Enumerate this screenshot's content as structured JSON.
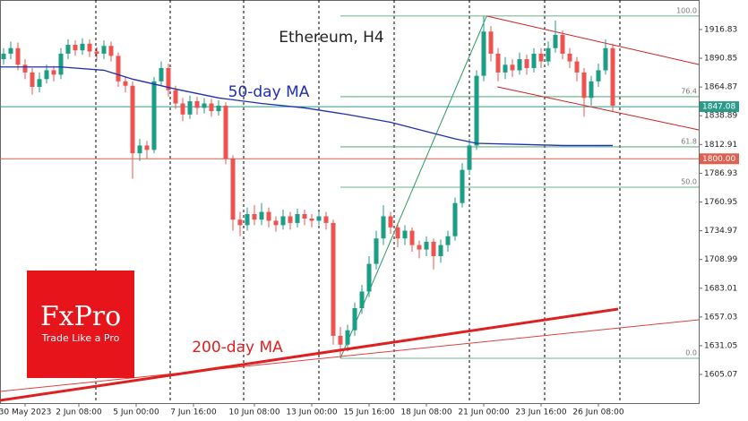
{
  "chart_data": {
    "type": "candlestick",
    "title": "Ethereum, H4",
    "xlim": [
      -0.5,
      97
    ],
    "ylim": [
      1579.2,
      1943.5
    ],
    "yticks": [
      1916.83,
      1890.85,
      1864.87,
      1838.89,
      1812.91,
      1786.93,
      1760.95,
      1734.97,
      1708.99,
      1683.01,
      1657.03,
      1631.05,
      1605.07
    ],
    "xticks": [
      {
        "value": 3,
        "label": "30 May 2023"
      },
      {
        "value": 10.5,
        "label": "2 Jun 08:00"
      },
      {
        "value": 18.5,
        "label": "5 Jun 00:00"
      },
      {
        "value": 26.5,
        "label": "7 Jun 16:00"
      },
      {
        "value": 35,
        "label": "10 Jun 08:00"
      },
      {
        "value": 43,
        "label": "13 Jun 00:00"
      },
      {
        "value": 51,
        "label": "15 Jun 16:00"
      },
      {
        "value": 59,
        "label": "18 Jun 08:00"
      },
      {
        "value": 67,
        "label": "21 Jun 00:00"
      },
      {
        "value": 75,
        "label": "23 Jun 16:00"
      },
      {
        "value": 83,
        "label": "26 Jun 08:00"
      }
    ],
    "xgrid": [
      12.875,
      23.25,
      33.5,
      44,
      54.5,
      65,
      75.5,
      86
    ],
    "up_color": "#1a9e85",
    "down_color": "#ef5350",
    "open": [
      1890,
      1895,
      1900,
      1885,
      1878,
      1865,
      1872,
      1880,
      1876,
      1895,
      1903,
      1898,
      1904,
      1897,
      1895,
      1902,
      1893,
      1870,
      1866,
      1805,
      1812,
      1808,
      1870,
      1882,
      1862,
      1850,
      1840,
      1852,
      1846,
      1850,
      1843,
      1848,
      1800,
      1745,
      1740,
      1750,
      1745,
      1752,
      1744,
      1740,
      1748,
      1742,
      1750,
      1746,
      1744,
      1748,
      1742,
      1640,
      1632,
      1645,
      1665,
      1680,
      1705,
      1728,
      1748,
      1738,
      1728,
      1735,
      1722,
      1718,
      1725,
      1712,
      1722,
      1730,
      1760,
      1790,
      1812,
      1875,
      1915,
      1895,
      1878,
      1885,
      1880,
      1890,
      1882,
      1895,
      1888,
      1900,
      1912,
      1895,
      1888,
      1878,
      1855,
      1870,
      1880,
      1900
    ],
    "high": [
      1900,
      1906,
      1905,
      1890,
      1882,
      1878,
      1885,
      1884,
      1900,
      1908,
      1907,
      1909,
      1908,
      1901,
      1907,
      1906,
      1896,
      1874,
      1870,
      1818,
      1816,
      1874,
      1888,
      1886,
      1866,
      1855,
      1857,
      1856,
      1855,
      1854,
      1853,
      1851,
      1803,
      1752,
      1756,
      1758,
      1760,
      1756,
      1748,
      1754,
      1752,
      1755,
      1754,
      1750,
      1752,
      1752,
      1745,
      1648,
      1650,
      1670,
      1686,
      1712,
      1735,
      1758,
      1752,
      1742,
      1740,
      1738,
      1726,
      1730,
      1728,
      1727,
      1735,
      1765,
      1796,
      1818,
      1880,
      1929,
      1920,
      1900,
      1892,
      1890,
      1896,
      1894,
      1900,
      1900,
      1906,
      1925,
      1916,
      1900,
      1892,
      1882,
      1875,
      1886,
      1908,
      1904
    ],
    "low": [
      1885,
      1890,
      1880,
      1872,
      1858,
      1860,
      1868,
      1870,
      1872,
      1890,
      1893,
      1894,
      1892,
      1889,
      1890,
      1888,
      1865,
      1860,
      1782,
      1798,
      1800,
      1805,
      1866,
      1856,
      1845,
      1834,
      1836,
      1840,
      1841,
      1838,
      1839,
      1795,
      1735,
      1730,
      1735,
      1740,
      1740,
      1738,
      1734,
      1736,
      1736,
      1738,
      1740,
      1738,
      1740,
      1736,
      1632,
      1620,
      1626,
      1640,
      1660,
      1675,
      1700,
      1722,
      1732,
      1720,
      1722,
      1716,
      1710,
      1712,
      1700,
      1706,
      1716,
      1726,
      1756,
      1786,
      1808,
      1870,
      1888,
      1870,
      1872,
      1874,
      1876,
      1876,
      1878,
      1882,
      1884,
      1896,
      1890,
      1882,
      1870,
      1838,
      1848,
      1865,
      1876,
      1843
    ],
    "close": [
      1895,
      1900,
      1885,
      1878,
      1865,
      1872,
      1880,
      1876,
      1895,
      1903,
      1898,
      1904,
      1897,
      1895,
      1902,
      1893,
      1870,
      1866,
      1805,
      1812,
      1808,
      1870,
      1882,
      1862,
      1850,
      1840,
      1852,
      1846,
      1850,
      1843,
      1848,
      1800,
      1745,
      1740,
      1750,
      1745,
      1752,
      1744,
      1740,
      1748,
      1742,
      1750,
      1746,
      1744,
      1748,
      1742,
      1640,
      1632,
      1645,
      1665,
      1680,
      1705,
      1728,
      1748,
      1738,
      1728,
      1735,
      1722,
      1718,
      1725,
      1712,
      1722,
      1730,
      1760,
      1790,
      1812,
      1875,
      1915,
      1895,
      1878,
      1885,
      1880,
      1890,
      1882,
      1895,
      1888,
      1900,
      1912,
      1895,
      1888,
      1878,
      1855,
      1870,
      1880,
      1900,
      1848
    ],
    "series": [
      {
        "name": "50-day MA",
        "color": "#1f2fb0",
        "x": [
          -0.5,
          8,
          14,
          18,
          24,
          30,
          36,
          42,
          48,
          54,
          60,
          63,
          66,
          72,
          78,
          85
        ],
        "values": [
          1883,
          1883,
          1880,
          1872,
          1863,
          1855,
          1850,
          1846,
          1840,
          1833,
          1823,
          1818,
          1814,
          1813,
          1812,
          1812
        ]
      },
      {
        "name": "200-day MA",
        "color": "#e02020",
        "x": [
          -0.5,
          85.75
        ],
        "values": [
          1581.6,
          1664.2
        ]
      }
    ],
    "lines": [
      {
        "color": "#e04040",
        "x": [
          -0.5,
          97
        ],
        "values": [
          1589.7,
          1654.5
        ]
      },
      {
        "color": "#2a9a60",
        "x": [
          47,
          67.4
        ],
        "values": [
          1619.7,
          1929
        ]
      },
      {
        "color": "#d02020",
        "x": [
          67.4,
          97
        ],
        "values": [
          1929,
          1885.2
        ]
      },
      {
        "color": "#d02020",
        "x": [
          68.9,
          97
        ],
        "values": [
          1865,
          1826.1
        ]
      }
    ],
    "levels": [
      {
        "price": 1847.08,
        "color": "#2a9a8a"
      },
      {
        "price": {
          "value": 1800,
          "label": "1800.00"
        },
        "color": "#e06050"
      }
    ],
    "fibonacci": {
      "color": "#3a9a60",
      "start": 47,
      "levels": [
        {
          "label": "100.0",
          "price": 1929
        },
        {
          "label": "76.4",
          "price": 1856.1
        },
        {
          "label": "61.8",
          "price": 1810.8
        },
        {
          "label": "50.0",
          "price": 1774.3
        },
        {
          "label": "0.0",
          "price": 1619.7
        }
      ]
    },
    "logo": {
      "name": "FxPro",
      "tagline": "Trade Like a Pro"
    }
  }
}
